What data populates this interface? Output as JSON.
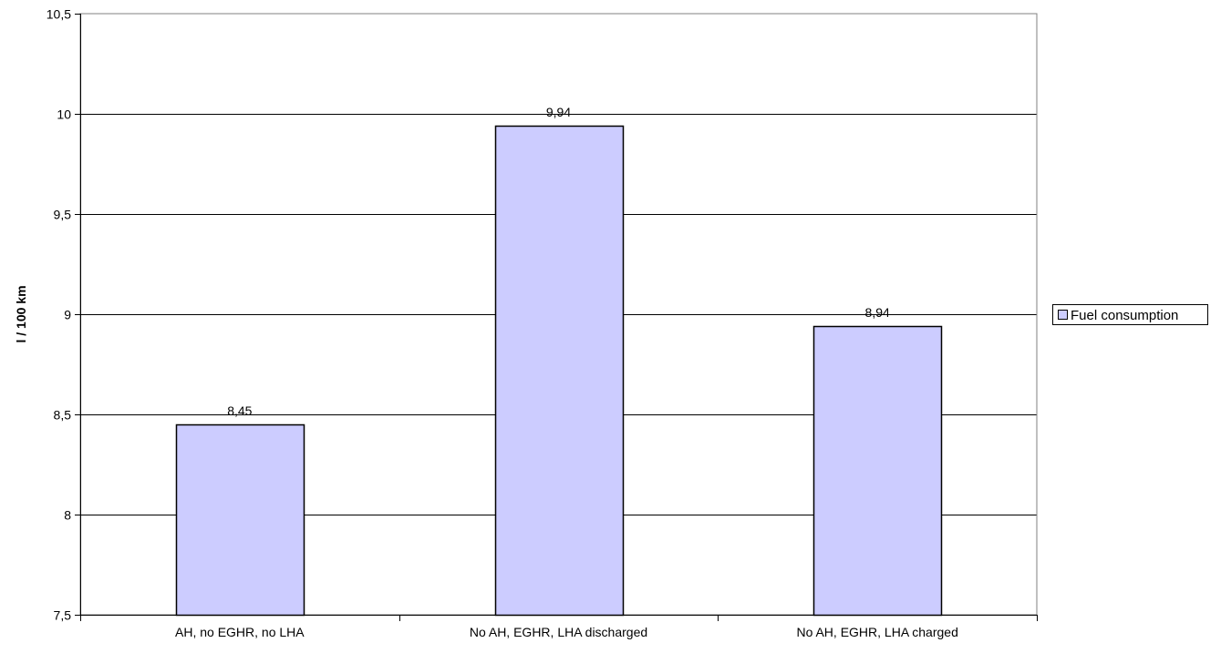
{
  "chart_data": {
    "type": "bar",
    "title": "",
    "xlabel": "",
    "ylabel": "l / 100 km",
    "categories": [
      "AH, no EGHR, no LHA",
      "No AH, EGHR, LHA discharged",
      "No AH, EGHR, LHA charged"
    ],
    "series": [
      {
        "name": "Fuel consumption",
        "values": [
          8.45,
          9.94,
          8.94
        ],
        "data_labels": [
          "8,45",
          "9,94",
          "8,94"
        ]
      }
    ],
    "ylim": [
      7.5,
      10.5
    ],
    "yticks": [
      7.5,
      8,
      8.5,
      9,
      9.5,
      10,
      10.5
    ],
    "ytick_labels": [
      "7,5",
      "8",
      "8,5",
      "9",
      "9,5",
      "10",
      "10,5"
    ],
    "grid": true,
    "legend": "right",
    "colors": {
      "bar_fill": "#ccccff",
      "bar_stroke": "#000000",
      "gridline": "#000000",
      "plot_border": "#808080"
    }
  }
}
